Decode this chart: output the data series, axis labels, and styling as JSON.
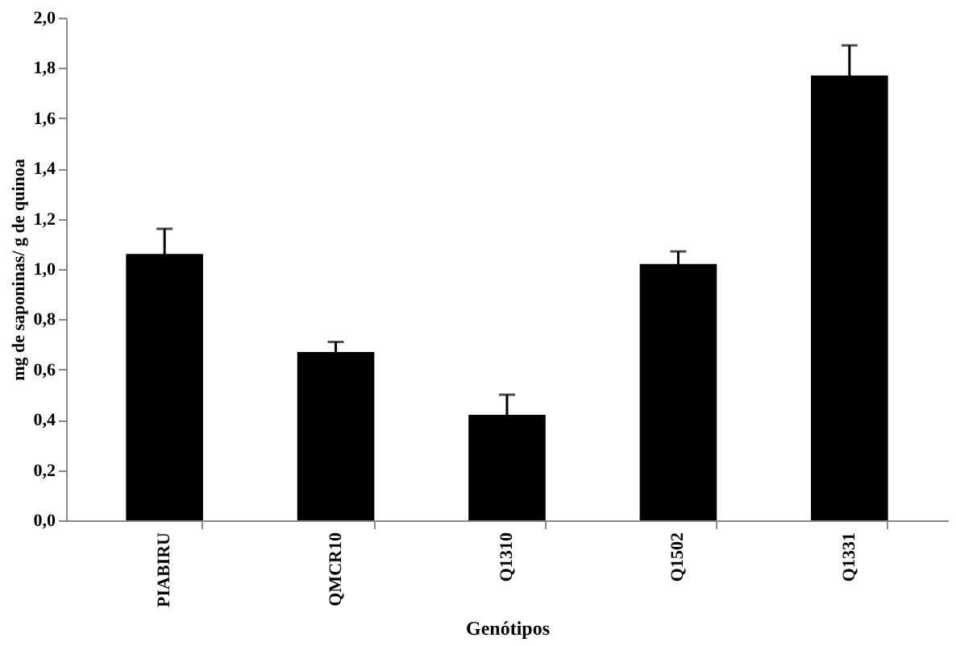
{
  "chart_data": {
    "type": "bar",
    "xlabel": "Genótipos",
    "ylabel": "mg de saponinas/ g de quinoa",
    "categories": [
      "PIABIRU",
      "QMCR10",
      "Q1310",
      "Q1502",
      "Q1331"
    ],
    "values": [
      1.06,
      0.67,
      0.42,
      1.02,
      1.77
    ],
    "errors": [
      0.1,
      0.04,
      0.08,
      0.05,
      0.12
    ],
    "color": "#000000",
    "ylim": [
      0,
      2.0
    ],
    "yticks": [
      {
        "value": 0,
        "label": "0,0"
      },
      {
        "value": 0.2,
        "label": "0,2"
      },
      {
        "value": 0.4,
        "label": "0,4"
      },
      {
        "value": 0.6,
        "label": "0,6"
      },
      {
        "value": 0.8,
        "label": "0,8"
      },
      {
        "value": 1.0,
        "label": "1,0"
      },
      {
        "value": 1.2,
        "label": "1,2"
      },
      {
        "value": 1.4,
        "label": "1,4"
      },
      {
        "value": 1.6,
        "label": "1,6"
      },
      {
        "value": 1.8,
        "label": "1,8"
      },
      {
        "value": 2.0,
        "label": "2,0"
      }
    ],
    "grid": false
  }
}
